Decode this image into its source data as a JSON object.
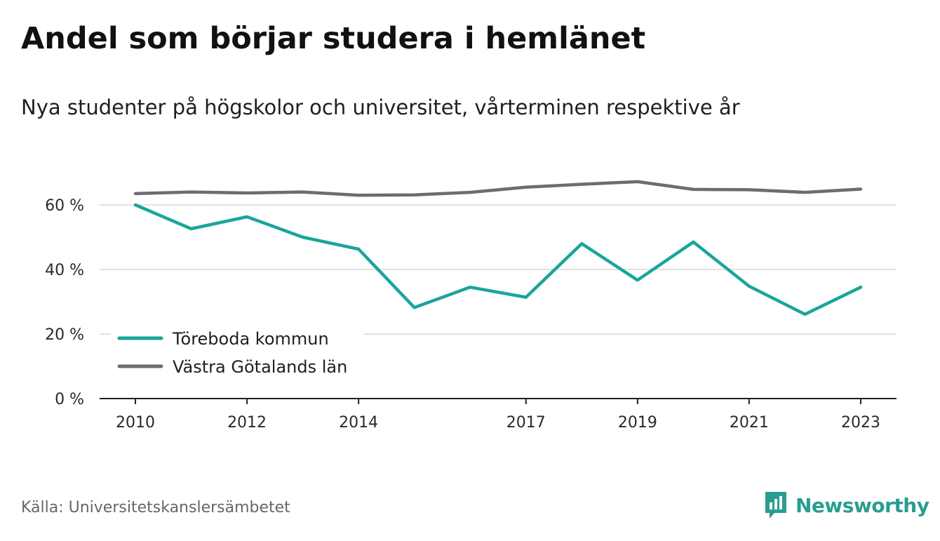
{
  "title": "Andel som börjar studera i hemlänet",
  "subtitle": "Nya studenter på högskolor och universitet, vårterminen respektive år",
  "source": "Källa: Universitetskanslersämbetet",
  "brand": {
    "name": "Newsworthy",
    "icon": "newsworthy-logo-icon",
    "color": "#2a9d91"
  },
  "chart_data": {
    "type": "line",
    "x": [
      2010,
      2011,
      2012,
      2013,
      2014,
      2015,
      2016,
      2017,
      2018,
      2019,
      2020,
      2021,
      2022,
      2023
    ],
    "x_tick_labels": [
      "2010",
      "2012",
      "2014",
      "2017",
      "2019",
      "2021",
      "2023"
    ],
    "y_ticks": [
      0,
      20,
      40,
      60
    ],
    "y_tick_labels": [
      "0 %",
      "20 %",
      "40 %",
      "60 %"
    ],
    "ylim": [
      0,
      70
    ],
    "grid": true,
    "legend_position": "bottom-left",
    "series": [
      {
        "name": "Töreboda kommun",
        "color": "#1aa59a",
        "values": [
          60,
          52.6,
          56.3,
          50,
          46.3,
          28.2,
          34.5,
          31.4,
          48,
          36.7,
          48.5,
          34.8,
          26.1,
          34.5
        ]
      },
      {
        "name": "Västra Götalands län",
        "color": "#6d6c72",
        "values": [
          63.5,
          64,
          63.7,
          64,
          63,
          63.1,
          63.9,
          65.5,
          66.4,
          67.2,
          64.8,
          64.7,
          63.9,
          64.9
        ]
      }
    ]
  }
}
